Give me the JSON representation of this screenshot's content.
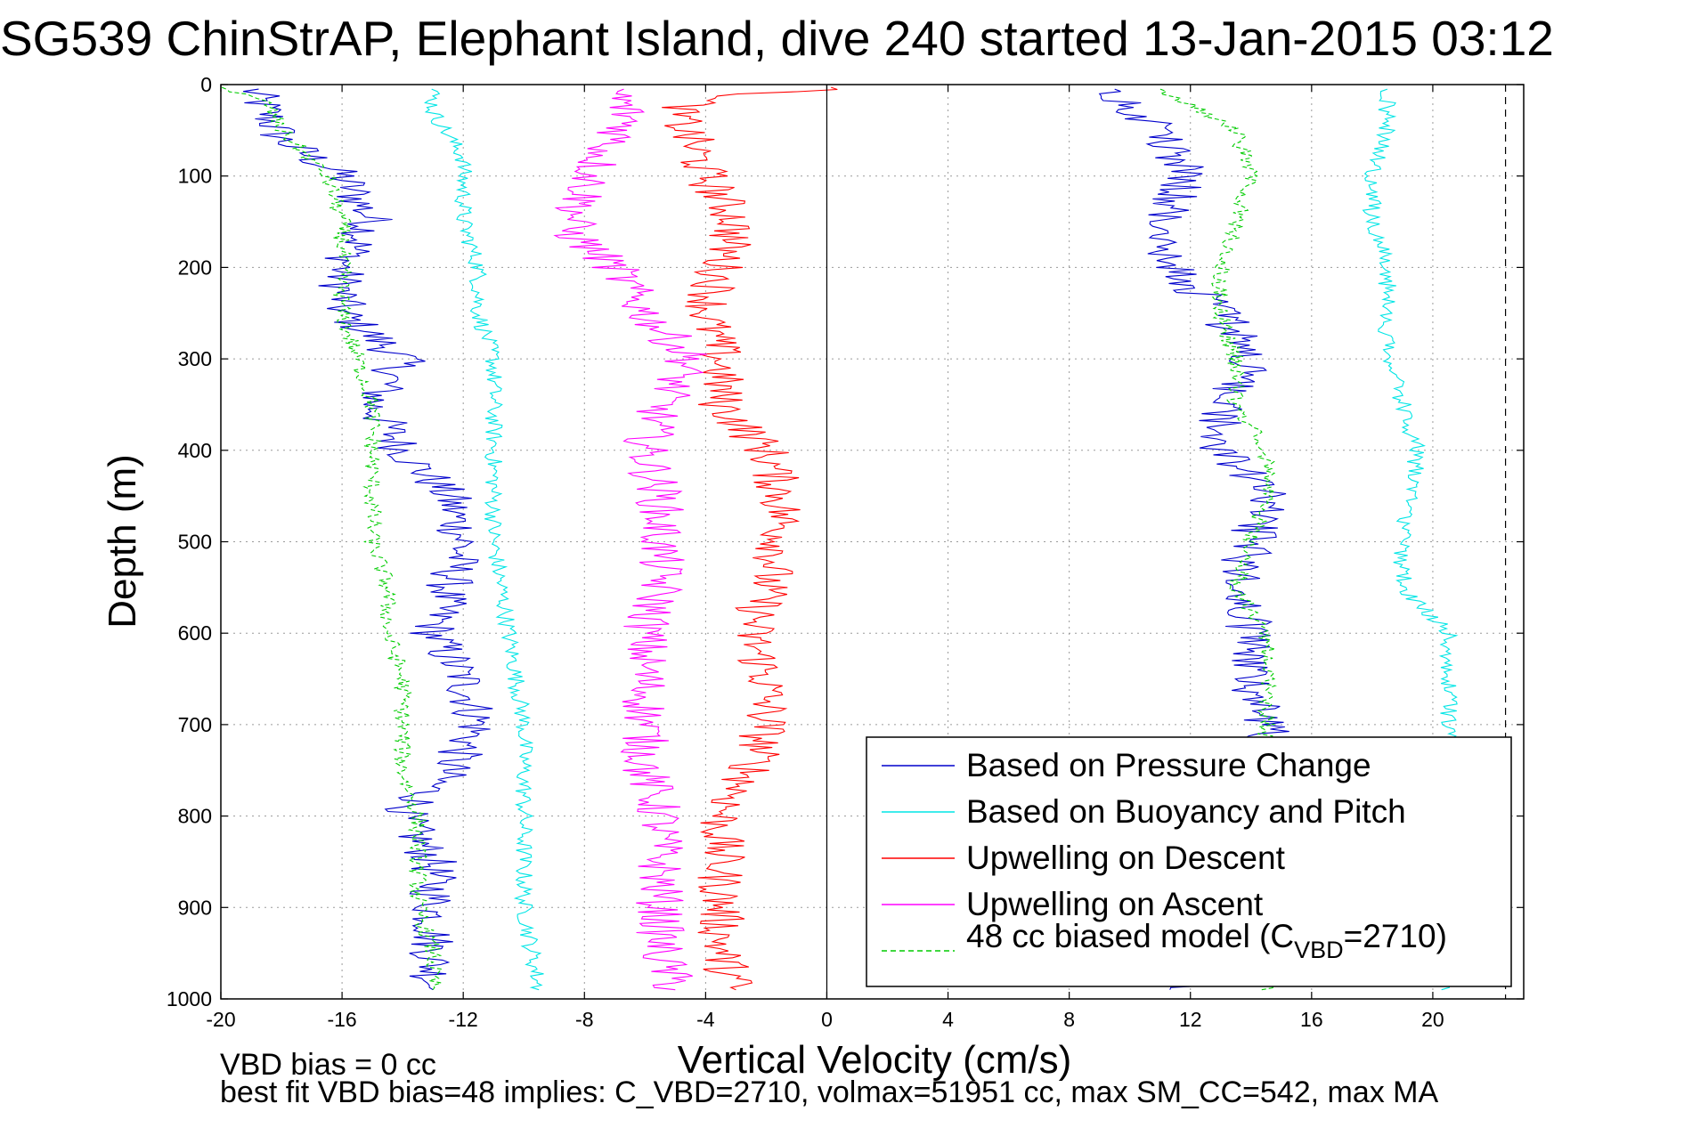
{
  "chart_data": {
    "type": "line",
    "title": "SG539 ChinStrAP, Elephant Island, dive 240 started 13-Jan-2015 03:12",
    "xlabel": "Vertical Velocity (cm/s)",
    "ylabel": "Depth (m)",
    "xlim": [
      -20,
      23
    ],
    "ylim": [
      1000,
      0
    ],
    "y_reversed": true,
    "xticks": [
      -20,
      -16,
      -12,
      -8,
      -4,
      0,
      4,
      8,
      12,
      16,
      20
    ],
    "xtick_labels": [
      "-20",
      "-16",
      "-12",
      "-8",
      "-4",
      "0",
      "4",
      "8",
      "12",
      "16",
      "20"
    ],
    "yticks": [
      0,
      100,
      200,
      300,
      400,
      500,
      600,
      700,
      800,
      900,
      1000
    ],
    "ytick_labels": [
      "0",
      "100",
      "200",
      "300",
      "400",
      "500",
      "600",
      "700",
      "800",
      "900",
      "1000"
    ],
    "grid": true,
    "grid_style": "dotted",
    "legend_position": "bottom-right",
    "footnotes": [
      "VBD bias = 0 cc",
      "best fit VBD bias=48 implies: C_VBD=2710, volmax=51951 cc, max SM_CC=542, max MA"
    ],
    "reference_lines": [
      {
        "x": 0,
        "style": "solid",
        "color": "#000000"
      },
      {
        "x": 22.4,
        "style": "dashed",
        "color": "#000000"
      }
    ],
    "series": [
      {
        "name": "Based on Pressure Change",
        "color": "#0000cc",
        "style": "solid",
        "noise": 0.8,
        "points": [
          [
            [
              -19.0,
              5
            ],
            [
              -18.5,
              30
            ],
            [
              -18.0,
              60
            ],
            [
              -16.0,
              100
            ],
            [
              -15.0,
              150
            ],
            [
              -16.0,
              200
            ],
            [
              -16.0,
              250
            ],
            [
              -14.0,
              300
            ],
            [
              -15.0,
              350
            ],
            [
              -14.0,
              400
            ],
            [
              -12.5,
              450
            ],
            [
              -12.0,
              500
            ],
            [
              -12.5,
              550
            ],
            [
              -13.0,
              600
            ],
            [
              -12.0,
              650
            ],
            [
              -11.5,
              700
            ],
            [
              -12.5,
              750
            ],
            [
              -14.0,
              800
            ],
            [
              -13.0,
              850
            ],
            [
              -13.0,
              900
            ],
            [
              -13.0,
              950
            ],
            [
              -13.0,
              990
            ]
          ],
          [
            [
              12.0,
              990
            ],
            [
              15.0,
              900
            ],
            [
              14.5,
              800
            ],
            [
              14.5,
              700
            ],
            [
              14.0,
              650
            ],
            [
              14.0,
              600
            ],
            [
              13.5,
              550
            ],
            [
              14.0,
              500
            ],
            [
              14.5,
              450
            ],
            [
              13.0,
              400
            ],
            [
              13.0,
              350
            ],
            [
              14.0,
              300
            ],
            [
              13.0,
              250
            ],
            [
              11.5,
              200
            ],
            [
              11.0,
              150
            ],
            [
              12.0,
              100
            ],
            [
              11.0,
              50
            ],
            [
              9.5,
              5
            ]
          ]
        ]
      },
      {
        "name": "Based on Buoyancy and Pitch",
        "color": "#00e5e5",
        "style": "solid",
        "noise": 0.3,
        "points": [
          [
            [
              -13.0,
              5
            ],
            [
              -13.0,
              30
            ],
            [
              -12.0,
              80
            ],
            [
              -12.0,
              150
            ],
            [
              -11.5,
              200
            ],
            [
              -11.5,
              250
            ],
            [
              -11.0,
              300
            ],
            [
              -11.0,
              350
            ],
            [
              -11.0,
              400
            ],
            [
              -11.0,
              500
            ],
            [
              -10.5,
              600
            ],
            [
              -10.0,
              700
            ],
            [
              -10.0,
              800
            ],
            [
              -10.0,
              900
            ],
            [
              -9.5,
              990
            ]
          ],
          [
            [
              20.5,
              990
            ],
            [
              20.5,
              900
            ],
            [
              20.5,
              800
            ],
            [
              20.5,
              700
            ],
            [
              20.5,
              600
            ],
            [
              19.0,
              550
            ],
            [
              19.0,
              500
            ],
            [
              19.5,
              400
            ],
            [
              18.5,
              300
            ],
            [
              18.5,
              200
            ],
            [
              18.0,
              150
            ],
            [
              18.0,
              100
            ],
            [
              18.5,
              50
            ],
            [
              18.5,
              5
            ]
          ]
        ]
      },
      {
        "name": "Upwelling on Descent",
        "color": "#ff0000",
        "style": "solid",
        "noise": 0.8,
        "points": [
          [
            [
              0.5,
              3
            ],
            [
              -4.0,
              15
            ],
            [
              -5.0,
              30
            ],
            [
              -4.5,
              60
            ],
            [
              -4.0,
              100
            ],
            [
              -3.0,
              150
            ],
            [
              -3.5,
              200
            ],
            [
              -4.0,
              250
            ],
            [
              -3.5,
              300
            ],
            [
              -3.5,
              350
            ],
            [
              -2.0,
              400
            ],
            [
              -1.5,
              450
            ],
            [
              -1.5,
              500
            ],
            [
              -2.0,
              550
            ],
            [
              -2.5,
              600
            ],
            [
              -2.0,
              650
            ],
            [
              -2.0,
              700
            ],
            [
              -2.5,
              750
            ],
            [
              -3.5,
              800
            ],
            [
              -3.5,
              850
            ],
            [
              -3.5,
              900
            ],
            [
              -3.5,
              950
            ],
            [
              -3.0,
              990
            ]
          ]
        ]
      },
      {
        "name": "Upwelling on Ascent",
        "color": "#ff00ff",
        "style": "solid",
        "noise": 0.8,
        "points": [
          [
            [
              -7.0,
              5
            ],
            [
              -6.5,
              40
            ],
            [
              -7.5,
              80
            ],
            [
              -8.0,
              120
            ],
            [
              -8.5,
              160
            ],
            [
              -7.0,
              200
            ],
            [
              -6.0,
              250
            ],
            [
              -4.5,
              300
            ],
            [
              -5.5,
              350
            ],
            [
              -6.0,
              400
            ],
            [
              -5.5,
              450
            ],
            [
              -5.5,
              500
            ],
            [
              -5.5,
              550
            ],
            [
              -6.0,
              600
            ],
            [
              -6.0,
              650
            ],
            [
              -6.0,
              700
            ],
            [
              -6.0,
              750
            ],
            [
              -5.5,
              800
            ],
            [
              -5.5,
              850
            ],
            [
              -5.5,
              900
            ],
            [
              -5.5,
              950
            ],
            [
              -5.0,
              990
            ]
          ]
        ]
      },
      {
        "name": "48 cc biased model (C_VBD=2710)",
        "color": "#00cc00",
        "style": "dashed",
        "noise": 0.3,
        "points": [
          [
            [
              -20.0,
              3
            ],
            [
              -18.5,
              20
            ],
            [
              -18.0,
              50
            ],
            [
              -16.5,
              100
            ],
            [
              -16.0,
              150
            ],
            [
              -16.0,
              200
            ],
            [
              -16.0,
              250
            ],
            [
              -15.5,
              300
            ],
            [
              -15.0,
              350
            ],
            [
              -15.0,
              400
            ],
            [
              -15.0,
              450
            ],
            [
              -15.0,
              500
            ],
            [
              -14.5,
              550
            ],
            [
              -14.5,
              600
            ],
            [
              -14.0,
              650
            ],
            [
              -14.0,
              700
            ],
            [
              -14.0,
              750
            ],
            [
              -13.5,
              800
            ],
            [
              -13.5,
              850
            ],
            [
              -13.5,
              900
            ],
            [
              -13.0,
              950
            ],
            [
              -13.0,
              990
            ]
          ],
          [
            [
              14.5,
              990
            ],
            [
              14.5,
              900
            ],
            [
              14.5,
              800
            ],
            [
              14.5,
              700
            ],
            [
              14.5,
              600
            ],
            [
              13.5,
              550
            ],
            [
              14.0,
              500
            ],
            [
              14.5,
              450
            ],
            [
              14.5,
              400
            ],
            [
              13.5,
              350
            ],
            [
              13.5,
              300
            ],
            [
              13.0,
              250
            ],
            [
              13.0,
              200
            ],
            [
              13.5,
              150
            ],
            [
              14.0,
              100
            ],
            [
              13.5,
              50
            ],
            [
              11.0,
              5
            ]
          ]
        ]
      }
    ],
    "legend": {
      "entries": [
        {
          "label": "Based on Pressure Change",
          "color": "#0000cc",
          "style": "solid"
        },
        {
          "label": "Based on Buoyancy and Pitch",
          "color": "#00e5e5",
          "style": "solid"
        },
        {
          "label": "Upwelling on Descent",
          "color": "#ff0000",
          "style": "solid"
        },
        {
          "label": "Upwelling on Ascent",
          "color": "#ff00ff",
          "style": "solid"
        },
        {
          "label_main": "48 cc biased model (C",
          "label_sub": "VBD",
          "label_tail": "=2710)",
          "color": "#00cc00",
          "style": "dashed"
        }
      ]
    }
  }
}
